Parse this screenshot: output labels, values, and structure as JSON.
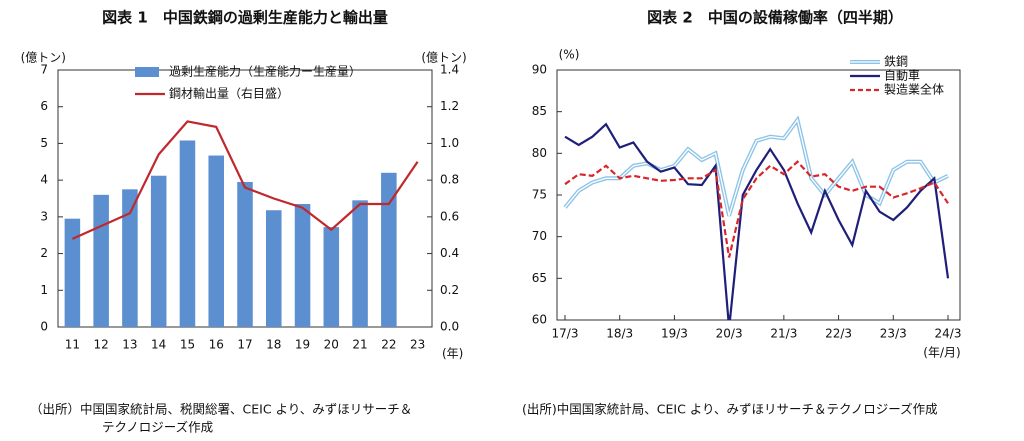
{
  "chart_data": [
    {
      "type": "combo",
      "title": "図表 1　中国鉄鋼の過剰生産能力と輸出量",
      "y_label": "(億トン)",
      "y2_label": "(億トン)",
      "x_label": "(年)",
      "categories": [
        "11",
        "12",
        "13",
        "14",
        "15",
        "16",
        "17",
        "18",
        "19",
        "20",
        "21",
        "22",
        "23"
      ],
      "series": [
        {
          "name": "過剰生産能力（生産能力ー生産量）",
          "type": "bar",
          "color": "#5b8fd0",
          "values": [
            2.95,
            3.6,
            3.75,
            4.12,
            5.08,
            4.67,
            3.95,
            3.18,
            3.35,
            2.72,
            3.45,
            4.2,
            null
          ]
        },
        {
          "name": "鋼材輸出量（右目盛）",
          "type": "line",
          "axis": "y2",
          "color": "#c0282d",
          "values": [
            0.48,
            0.55,
            0.62,
            0.94,
            1.12,
            1.09,
            0.76,
            0.7,
            0.65,
            0.53,
            0.67,
            0.67,
            0.9
          ]
        }
      ],
      "ylim": [
        0,
        7
      ],
      "yticks": [
        0,
        1,
        2,
        3,
        4,
        5,
        6,
        7
      ],
      "y2lim": [
        0,
        1.4
      ],
      "y2ticks": [
        {
          "value": 0,
          "label": "0.0"
        },
        0.2,
        0.4,
        0.6,
        0.8,
        {
          "value": 1,
          "label": "1.0"
        },
        1.2,
        1.4
      ],
      "source": [
        "（出所）中国国家統計局、税関総署、CEIC より、みずほリサーチ＆",
        "テクノロジーズ作成"
      ]
    },
    {
      "type": "line",
      "title": "図表 2　中国の設備稼働率（四半期）",
      "y_label": "(%)",
      "x_label": "(年/月)",
      "categories": [
        "17/3",
        null,
        null,
        null,
        "18/3",
        null,
        null,
        null,
        "19/3",
        null,
        null,
        null,
        "20/3",
        null,
        null,
        null,
        "21/3",
        null,
        null,
        null,
        "22/3",
        null,
        null,
        null,
        "23/3",
        null,
        null,
        null,
        "24/3"
      ],
      "series": [
        {
          "name": "鉄鋼",
          "color": "#8cc4e8",
          "style": "double",
          "values": [
            73.5,
            75.5,
            76.5,
            77,
            77,
            78.5,
            78.8,
            78,
            78.5,
            80.5,
            79.2,
            80,
            72.5,
            78,
            81.5,
            82,
            81.8,
            84,
            77,
            75,
            77,
            79,
            75,
            74,
            78,
            79,
            79,
            76.5,
            77.3
          ]
        },
        {
          "name": "自動車",
          "color": "#1f1f7a",
          "style": "solid",
          "values": [
            82,
            81,
            82,
            83.5,
            80.7,
            81.3,
            79,
            77.8,
            78.3,
            76.3,
            76.2,
            78.5,
            59,
            75,
            78,
            80.5,
            78,
            74,
            70.5,
            75.5,
            72,
            69,
            75.5,
            73,
            72,
            73.5,
            75.5,
            77,
            65
          ]
        },
        {
          "name": "製造業全体",
          "color": "#d9262a",
          "style": "dashed",
          "values": [
            76.3,
            77.5,
            77.3,
            78.5,
            77,
            77.3,
            77,
            76.7,
            76.8,
            77,
            77,
            78,
            67.5,
            74.5,
            77,
            78.5,
            77.5,
            79,
            77.2,
            77.5,
            76,
            75.5,
            76,
            76,
            74.7,
            75.2,
            75.8,
            76.5,
            74
          ]
        }
      ],
      "ylim": [
        60,
        90
      ],
      "yticks": [
        60,
        65,
        70,
        75,
        80,
        85,
        90
      ],
      "source": [
        "(出所)中国国家統計局、CEIC より、みずほリサーチ＆テクノロジーズ作成"
      ]
    }
  ]
}
